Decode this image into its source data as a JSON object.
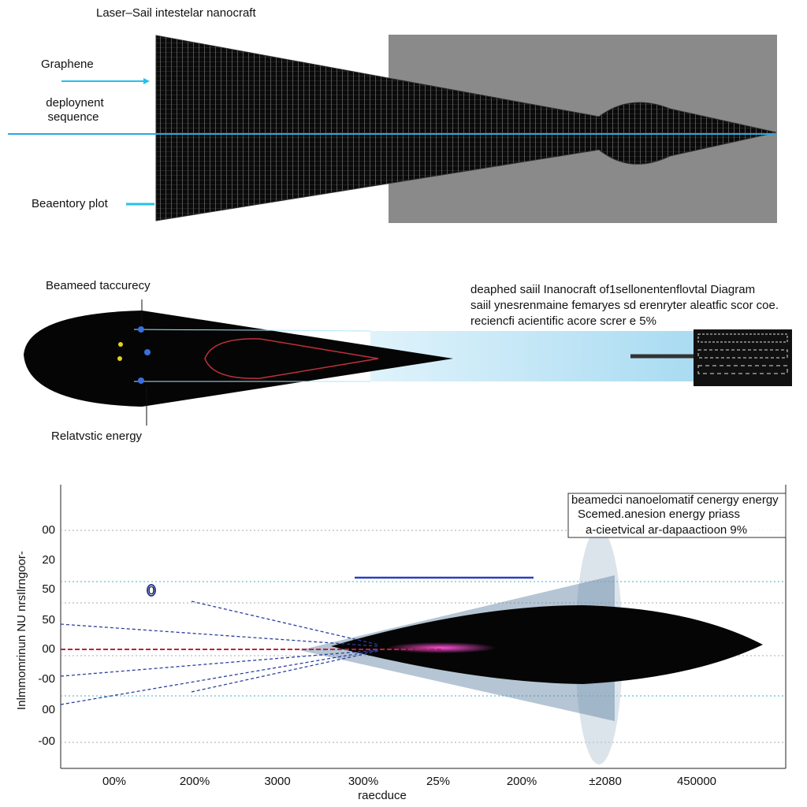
{
  "top_panel": {
    "title": "Laser–Sail intestelar nanocraft",
    "labels": [
      "Graphene",
      "deploynent",
      "sequence",
      "Beaentory plot"
    ]
  },
  "middle_panel": {
    "label_top": "Beameed taccurecy",
    "label_bottom": "Relatvstic energy",
    "notes": [
      "deaphed saiil Inanocraft of1sellonentenflovtal Diagram",
      "saiil ynesrenmaine femaryes sd erenryter aleatfic scor coe.",
      "reciencfi acientific acore screr e 5%"
    ]
  },
  "bottom_panel": {
    "legend": [
      "beamedci nanoelomatif cenergy energy",
      "Scemed.anesion energy priass",
      "a-cieetvical ar-dapaactioon 9%"
    ],
    "y_axis_label": "Inlmmomrinun NU nrsIlrngoor-",
    "y_labels": [
      "00",
      "20",
      "50",
      "50",
      "00",
      "-00",
      "00",
      "-00"
    ],
    "x_labels": [
      "00%",
      "200%",
      "3000",
      "300%",
      "25%",
      "200%",
      "±2080",
      "450000"
    ],
    "x_axis_label": "raecduce",
    "marker": "0"
  }
}
